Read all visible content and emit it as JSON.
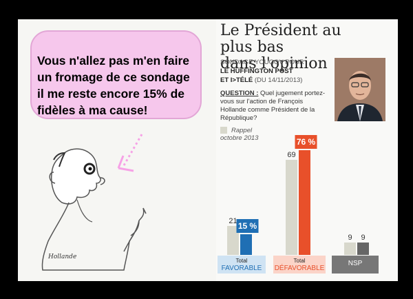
{
  "bubble": {
    "text": "Vous n'allez pas m'en faire\nun fromage de ce sondage\nil me reste encore 15% de\nfidèles à ma cause!"
  },
  "signature": "Hollande",
  "title": "Le Président au plus bas\ndans l'opinion",
  "poll": {
    "line1": "SONDAGE YOUGOV POUR",
    "line2": "LE HUFFINGTON POST",
    "line3a": "ET I>TÉLÉ",
    "line3b": " (DU 14/11/2013)"
  },
  "question": {
    "label": "QUESTION :",
    "text": " Quel jugement portez-vous sur l'action de François Hollande comme Président de la République?"
  },
  "legend": {
    "line1": "Rappel",
    "line2": "octobre 2013"
  },
  "chart_data": {
    "type": "bar",
    "categories": [
      "Total FAVORABLE",
      "Total DÉFAVORABLE",
      "NSP"
    ],
    "series": [
      {
        "name": "Rappel octobre 2013",
        "values": [
          21,
          69,
          9
        ]
      },
      {
        "values": [
          15,
          76,
          9
        ]
      }
    ],
    "value_labels": [
      [
        "21",
        "15 %"
      ],
      [
        "69",
        "76 %"
      ],
      [
        "9",
        "9"
      ]
    ],
    "colors": {
      "rappel": "#d8d8cc",
      "favorable": "#1f6fb4",
      "defavorable": "#e8502a",
      "nsp": "#666666"
    },
    "category_labels": [
      {
        "top": "Total",
        "bottom": "FAVORABLE",
        "bg": "#cfe3f3"
      },
      {
        "top": "Total",
        "bottom": "DÉFAVORABLE",
        "bg": "#fbd4c8"
      },
      {
        "top": "",
        "bottom": "NSP",
        "bg": "#777777"
      }
    ]
  }
}
